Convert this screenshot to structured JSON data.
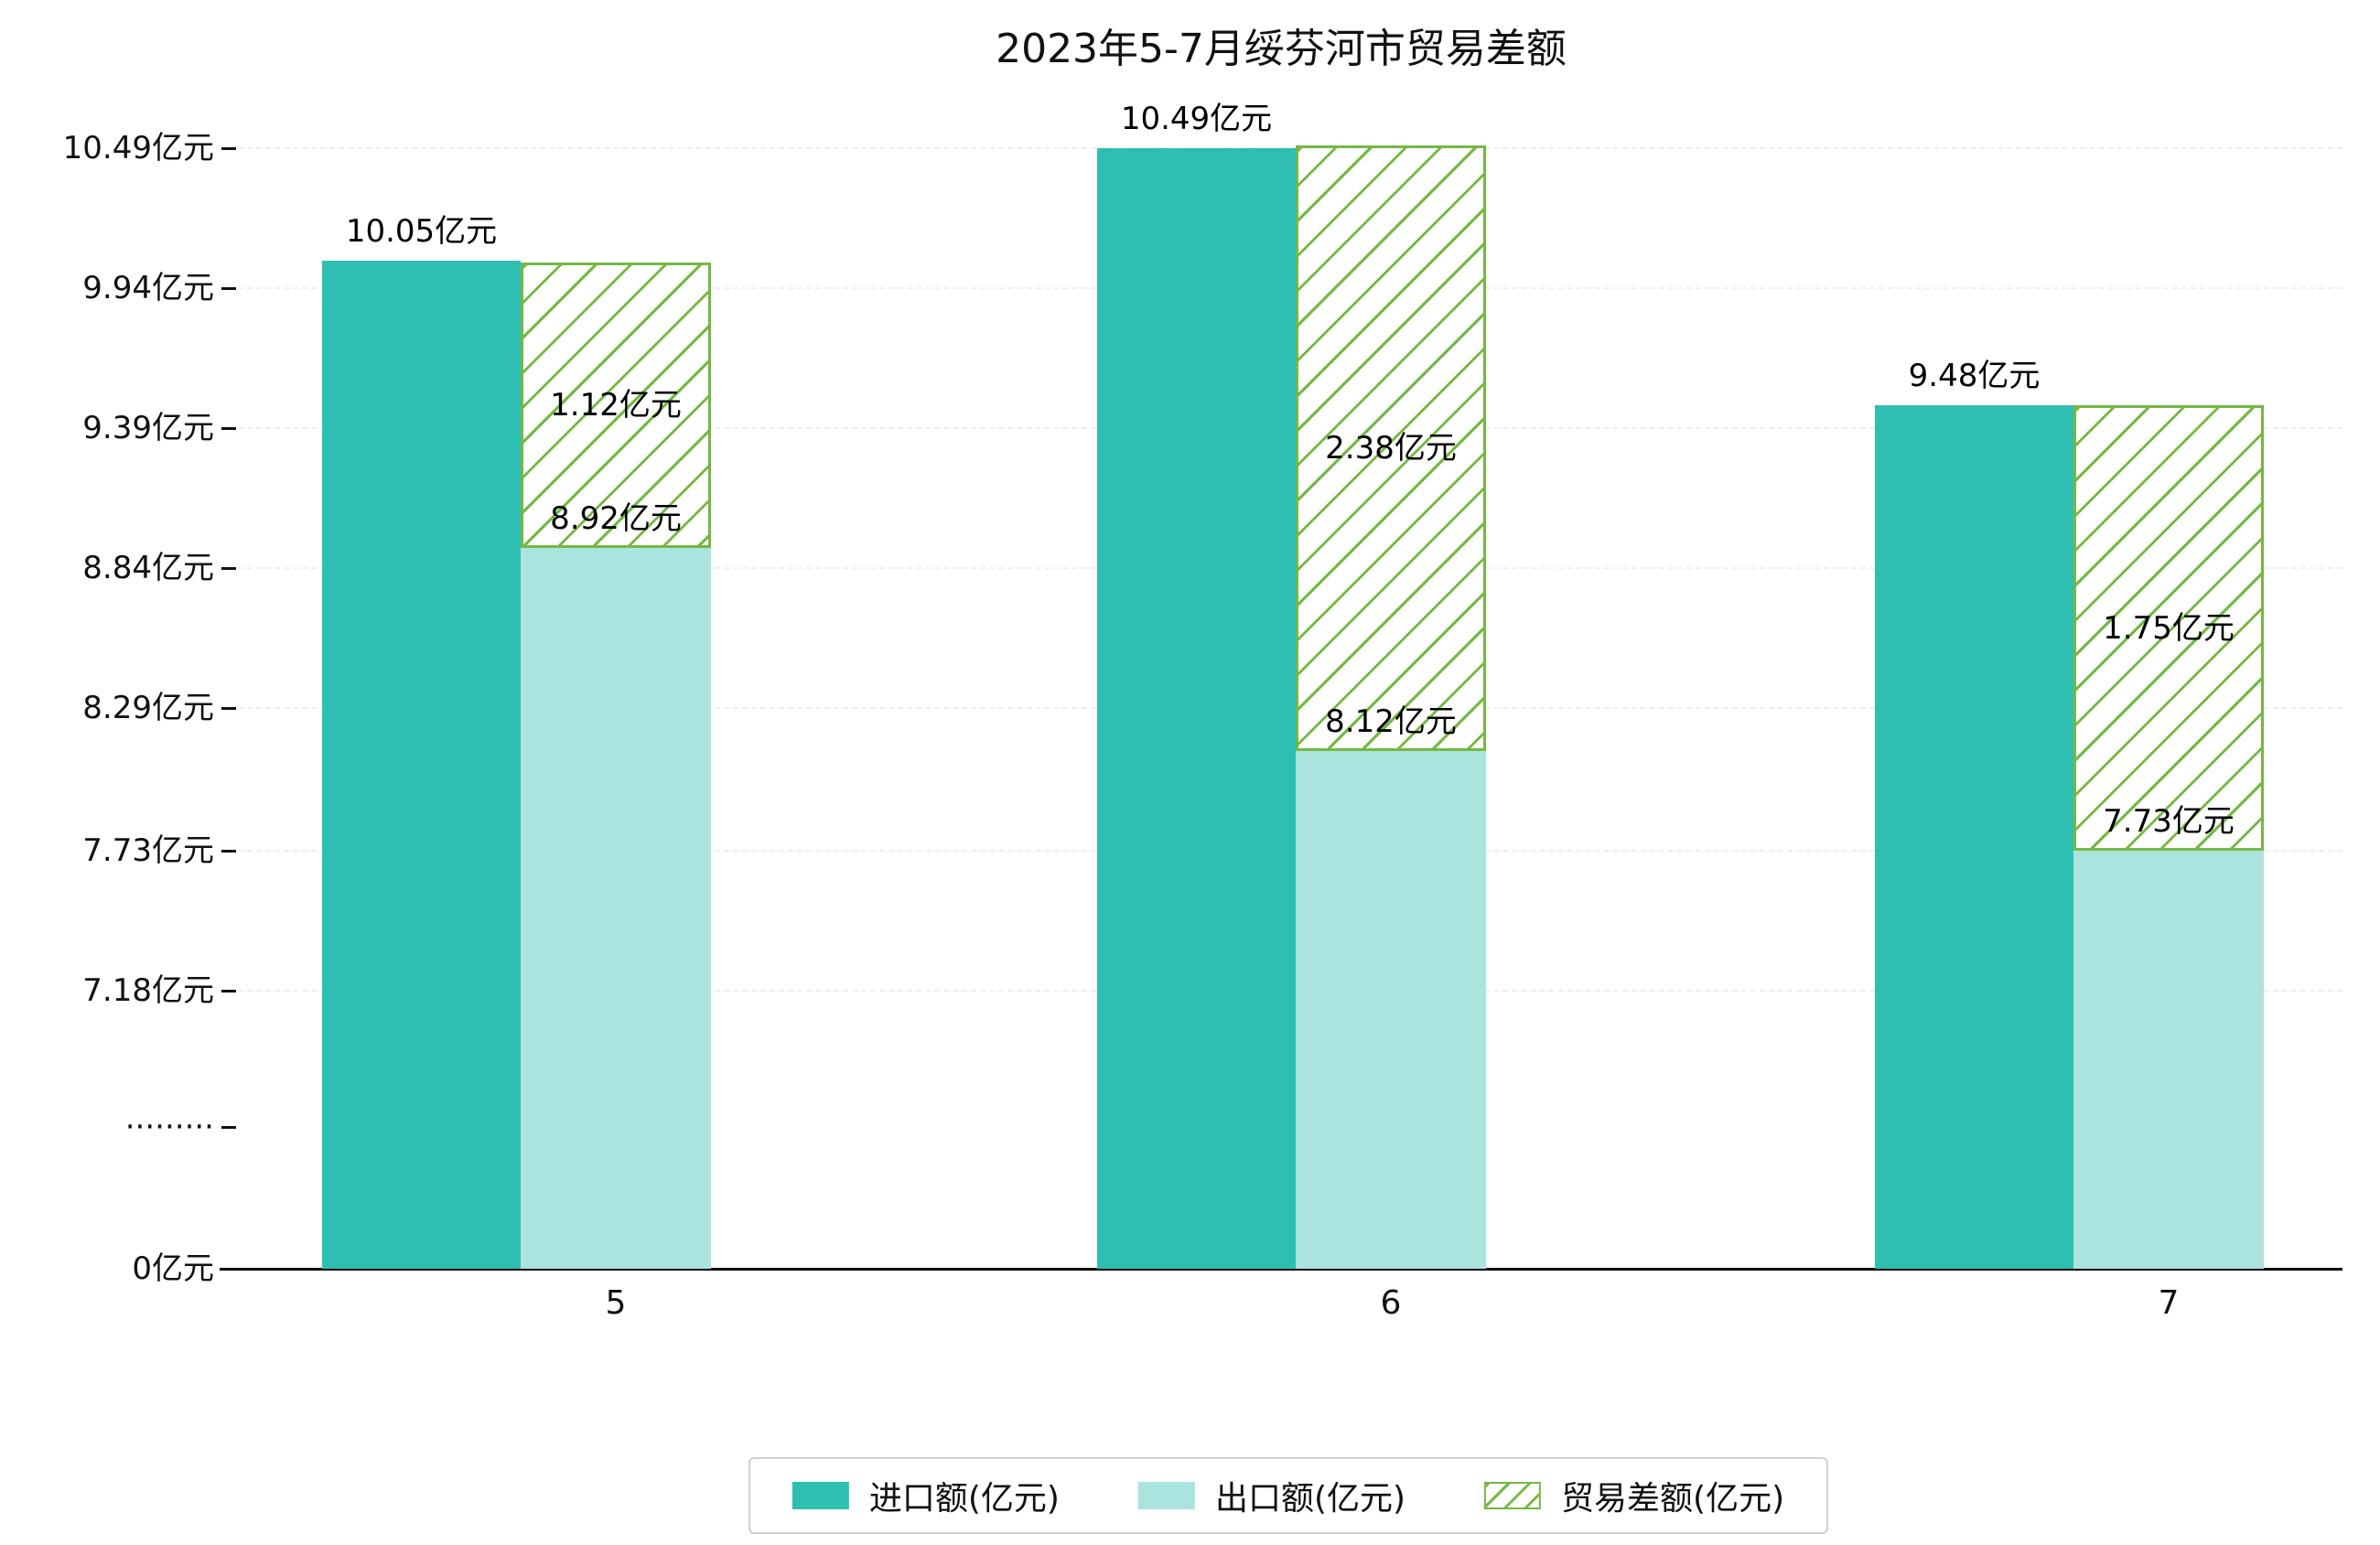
{
  "page": {
    "background": "#ffffff"
  },
  "chart_data": {
    "type": "bar",
    "title": "2023年5-7月绥芬河市贸易差额",
    "unit": "亿元",
    "categories": [
      "5",
      "6",
      "7"
    ],
    "series": [
      {
        "name": "进口额(亿元)",
        "role": "import",
        "values": [
          10.05,
          10.49,
          9.48
        ],
        "labels": [
          "10.05亿元",
          "10.49亿元",
          "9.48亿元"
        ],
        "color": "#2fbfb2",
        "style": "solid"
      },
      {
        "name": "出口额(亿元)",
        "role": "export",
        "values": [
          8.92,
          8.12,
          7.73
        ],
        "labels": [
          "8.92亿元",
          "8.12亿元",
          "7.73亿元"
        ],
        "color": "#abe3df",
        "style": "solid"
      },
      {
        "name": "贸易差额(亿元)",
        "role": "trade-balance",
        "values": [
          1.12,
          2.38,
          1.75
        ],
        "labels": [
          "1.12亿元",
          "2.38亿元",
          "1.75亿元"
        ],
        "color": "#74b843",
        "style": "hatched",
        "stacked_on": "出口额(亿元)"
      }
    ],
    "x_axis": {
      "tick_labels": [
        "5",
        "6",
        "7"
      ]
    },
    "y_axis": {
      "axis_break": true,
      "ticks": [
        {
          "label": "10.49亿元",
          "value": 10.49
        },
        {
          "label": "9.94亿元",
          "value": 9.94
        },
        {
          "label": "9.39亿元",
          "value": 9.39
        },
        {
          "label": "8.84亿元",
          "value": 8.84
        },
        {
          "label": "8.29亿元",
          "value": 8.29
        },
        {
          "label": "7.73亿元",
          "value": 7.73
        },
        {
          "label": "7.18亿元",
          "value": 7.18
        },
        {
          "label": "·········",
          "value": null
        },
        {
          "label": "0亿元",
          "value": 0
        }
      ]
    },
    "legend": {
      "position": "bottom",
      "entries": [
        "进口额(亿元)",
        "出口额(亿元)",
        "贸易差额(亿元)"
      ]
    },
    "grid": true
  },
  "colors": {
    "import": "#2fbfb2",
    "export": "#abe3df",
    "trade_balance": "#74b843",
    "axis": "#000000",
    "gridline": "#efefef",
    "legend_border": "#cfcfcf",
    "text": "#111111",
    "background": "#ffffff"
  }
}
